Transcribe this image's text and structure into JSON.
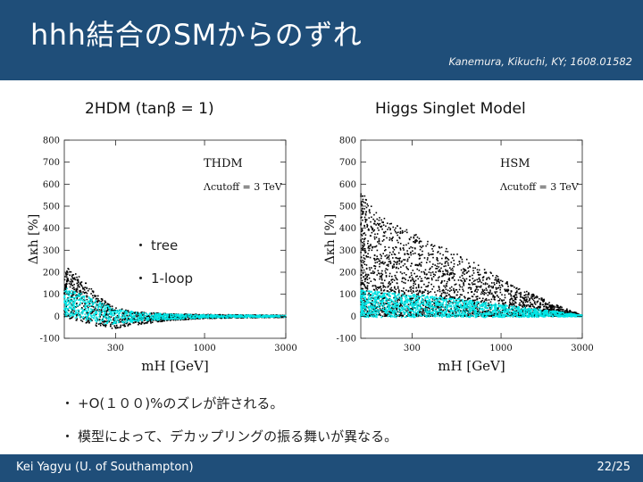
{
  "slide": {
    "title": "hhh結合のSMからのずれ",
    "citation": "Kanemura, Kikuchi, KY; 1608.01582",
    "bullets": [
      "+O(１００)%のズレが許される。",
      "模型によって、デカップリングの振る舞いが異なる。"
    ],
    "footer_author": "Kei Yagyu (U. of Southampton)",
    "page_number": "22/25"
  },
  "legend": {
    "tree": "tree",
    "loop": "1-loop"
  },
  "colors": {
    "header": "#1f4e79",
    "tree_points": "#000000",
    "loop_points": "#00e5e5"
  },
  "chart_data": [
    {
      "type": "scatter",
      "panel_title": "2HDM (tanβ = 1)",
      "in_plot_label": "THDM",
      "cutoff_label": "Λcutoff = 3 TeV",
      "xlabel": "mH [GeV]",
      "ylabel": "Δκh [%]",
      "x_scale": "log",
      "xlim": [
        150,
        3000
      ],
      "ylim": [
        -100,
        800
      ],
      "x_ticks": [
        300,
        1000,
        3000
      ],
      "y_ticks": [
        -100,
        0,
        100,
        200,
        300,
        400,
        500,
        600,
        700,
        800
      ],
      "series": [
        {
          "name": "tree",
          "envelope": {
            "x": [
              150,
              180,
              220,
              260,
              300,
              400,
              600,
              1000,
              3000
            ],
            "y_max": [
              230,
              190,
              120,
              70,
              40,
              20,
              12,
              8,
              5
            ],
            "y_min": [
              -5,
              -20,
              -40,
              -55,
              -55,
              -40,
              -20,
              -10,
              -5
            ]
          }
        },
        {
          "name": "1-loop",
          "envelope": {
            "x": [
              150,
              180,
              220,
              260,
              300,
              400,
              600,
              1000,
              3000
            ],
            "y_max": [
              130,
              110,
              80,
              55,
              35,
              18,
              10,
              7,
              4
            ],
            "y_min": [
              0,
              -10,
              -25,
              -35,
              -35,
              -25,
              -15,
              -8,
              -3
            ]
          }
        }
      ]
    },
    {
      "type": "scatter",
      "panel_title": "Higgs Singlet Model",
      "in_plot_label": "HSM",
      "cutoff_label": "Λcutoff = 3 TeV",
      "xlabel": "mH [GeV]",
      "ylabel": "Δκh [%]",
      "x_scale": "log",
      "xlim": [
        150,
        3000
      ],
      "ylim": [
        -100,
        800
      ],
      "x_ticks": [
        300,
        1000,
        3000
      ],
      "y_ticks": [
        -100,
        0,
        100,
        200,
        300,
        400,
        500,
        600,
        700,
        800
      ],
      "series": [
        {
          "name": "tree",
          "envelope": {
            "x": [
              150,
              200,
              300,
              500,
              800,
              1200,
              2000,
              3000
            ],
            "y_max": [
              570,
              450,
              380,
              300,
              220,
              140,
              60,
              5
            ],
            "y_min": [
              0,
              0,
              0,
              0,
              0,
              0,
              0,
              0
            ]
          }
        },
        {
          "name": "1-loop",
          "envelope": {
            "x": [
              150,
              200,
              300,
              500,
              800,
              1200,
              2000,
              3000
            ],
            "y_max": [
              120,
              110,
              100,
              85,
              65,
              45,
              25,
              5
            ],
            "y_min": [
              -5,
              -5,
              -5,
              -5,
              -5,
              -5,
              -3,
              -2
            ]
          }
        }
      ]
    }
  ]
}
